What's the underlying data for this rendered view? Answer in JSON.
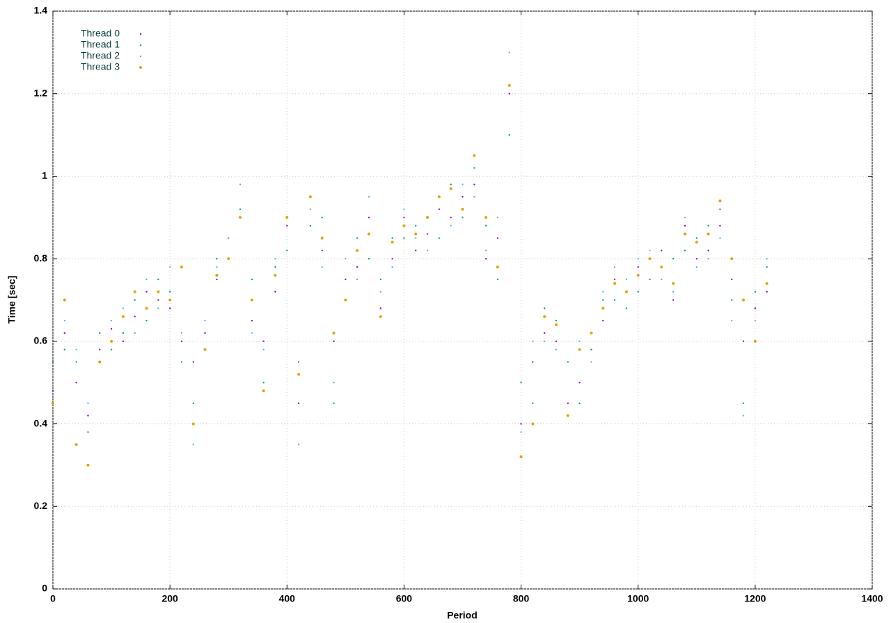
{
  "chart_data": {
    "type": "scatter",
    "xlabel": "Period",
    "ylabel": "Time [sec]",
    "xlim": [
      0,
      1400
    ],
    "ylim": [
      0,
      1.4
    ],
    "xticks": [
      0,
      200,
      400,
      600,
      800,
      1000,
      1200,
      1400
    ],
    "yticks": [
      0,
      0.2,
      0.4,
      0.6,
      0.8,
      1,
      1.2,
      1.4
    ],
    "grid": true,
    "legend": "top left",
    "x": [
      0,
      20,
      40,
      60,
      80,
      100,
      120,
      140,
      160,
      180,
      200,
      220,
      240,
      260,
      280,
      300,
      320,
      340,
      360,
      380,
      400,
      420,
      440,
      460,
      480,
      500,
      520,
      540,
      560,
      580,
      600,
      620,
      640,
      660,
      680,
      700,
      720,
      740,
      760,
      780,
      800,
      820,
      840,
      860,
      880,
      900,
      920,
      940,
      960,
      980,
      1000,
      1020,
      1040,
      1060,
      1080,
      1100,
      1120,
      1140,
      1160,
      1180,
      1200,
      1220
    ],
    "series": [
      {
        "name": "Thread 0",
        "color": "#9400d3",
        "values": [
          0.48,
          0.62,
          0.5,
          0.42,
          0.58,
          0.63,
          0.6,
          0.66,
          0.72,
          0.7,
          0.68,
          0.6,
          0.55,
          0.62,
          0.75,
          0.85,
          0.9,
          0.65,
          0.6,
          0.72,
          0.88,
          0.45,
          0.95,
          0.82,
          0.6,
          0.75,
          0.78,
          0.9,
          0.68,
          0.8,
          0.9,
          0.82,
          0.86,
          0.92,
          0.9,
          0.95,
          0.98,
          0.8,
          0.85,
          1.2,
          0.4,
          0.55,
          0.62,
          0.6,
          0.45,
          0.5,
          0.62,
          0.65,
          0.75,
          0.72,
          0.78,
          0.8,
          0.82,
          0.7,
          0.88,
          0.8,
          0.82,
          0.88,
          0.75,
          0.6,
          0.68,
          0.72
        ]
      },
      {
        "name": "Thread 1",
        "color": "#009e73",
        "values": [
          0.55,
          0.58,
          0.55,
          0.38,
          0.62,
          0.58,
          0.62,
          0.7,
          0.65,
          0.75,
          0.72,
          0.55,
          0.45,
          0.58,
          0.8,
          0.8,
          0.92,
          0.75,
          0.5,
          0.78,
          0.82,
          0.55,
          0.88,
          0.9,
          0.45,
          0.7,
          0.85,
          0.8,
          0.75,
          0.85,
          0.85,
          0.88,
          0.9,
          0.85,
          0.98,
          0.9,
          1.02,
          0.88,
          0.75,
          1.1,
          0.5,
          0.45,
          0.68,
          0.65,
          0.55,
          0.45,
          0.58,
          0.7,
          0.7,
          0.68,
          0.72,
          0.75,
          0.78,
          0.8,
          0.82,
          0.85,
          0.88,
          0.92,
          0.7,
          0.45,
          0.72,
          0.78
        ]
      },
      {
        "name": "Thread 2",
        "color": "#56b4e9",
        "values": [
          0.52,
          0.65,
          0.58,
          0.45,
          0.55,
          0.65,
          0.68,
          0.62,
          0.75,
          0.68,
          0.78,
          0.62,
          0.35,
          0.65,
          0.78,
          0.85,
          0.98,
          0.62,
          0.58,
          0.8,
          0.9,
          0.35,
          0.92,
          0.78,
          0.5,
          0.8,
          0.75,
          0.95,
          0.72,
          0.78,
          0.92,
          0.85,
          0.82,
          0.95,
          0.88,
          0.98,
          0.95,
          0.82,
          0.9,
          1.3,
          0.38,
          0.6,
          0.6,
          0.58,
          0.42,
          0.6,
          0.55,
          0.72,
          0.78,
          0.75,
          0.8,
          0.82,
          0.75,
          0.72,
          0.9,
          0.78,
          0.8,
          0.85,
          0.65,
          0.42,
          0.65,
          0.8
        ]
      },
      {
        "name": "Thread 3",
        "color": "#e69f00",
        "values": [
          0.45,
          0.7,
          0.35,
          0.3,
          0.55,
          0.6,
          0.66,
          0.72,
          0.68,
          0.72,
          0.7,
          0.78,
          0.4,
          0.58,
          0.76,
          0.8,
          0.9,
          0.7,
          0.48,
          0.76,
          0.9,
          0.52,
          0.95,
          0.85,
          0.62,
          0.7,
          0.82,
          0.86,
          0.66,
          0.84,
          0.88,
          0.86,
          0.9,
          0.95,
          0.97,
          0.92,
          1.05,
          0.9,
          0.78,
          1.22,
          0.32,
          0.4,
          0.66,
          0.64,
          0.42,
          0.58,
          0.62,
          0.68,
          0.74,
          0.72,
          0.76,
          0.8,
          0.78,
          0.74,
          0.86,
          0.84,
          0.86,
          0.94,
          0.8,
          0.7,
          0.6,
          0.74
        ]
      }
    ]
  }
}
